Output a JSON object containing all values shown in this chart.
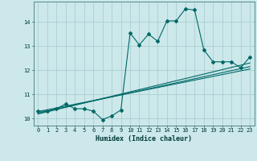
{
  "xlabel": "Humidex (Indice chaleur)",
  "bg_color": "#cce8ea",
  "grid_color": "#aacfd2",
  "line_color": "#006868",
  "xlim": [
    -0.5,
    23.5
  ],
  "ylim": [
    9.7,
    14.85
  ],
  "xticks": [
    0,
    1,
    2,
    3,
    4,
    5,
    6,
    7,
    8,
    9,
    10,
    11,
    12,
    13,
    14,
    15,
    16,
    17,
    18,
    19,
    20,
    21,
    22,
    23
  ],
  "yticks": [
    10,
    11,
    12,
    13,
    14
  ],
  "data_x": [
    0,
    1,
    2,
    3,
    4,
    5,
    6,
    7,
    8,
    9,
    10,
    11,
    12,
    13,
    14,
    15,
    16,
    17,
    18,
    19,
    20,
    21,
    22,
    23
  ],
  "data_y": [
    10.3,
    10.3,
    10.4,
    10.6,
    10.4,
    10.4,
    10.3,
    9.95,
    10.1,
    10.35,
    13.55,
    13.05,
    13.5,
    13.2,
    14.05,
    14.05,
    14.55,
    14.5,
    12.85,
    12.35,
    12.35,
    12.35,
    12.1,
    12.55
  ],
  "trend1_x": [
    0,
    23
  ],
  "trend1_y": [
    10.28,
    12.05
  ],
  "trend2_x": [
    0,
    23
  ],
  "trend2_y": [
    10.22,
    12.15
  ],
  "trend3_x": [
    0,
    23
  ],
  "trend3_y": [
    10.18,
    12.3
  ]
}
